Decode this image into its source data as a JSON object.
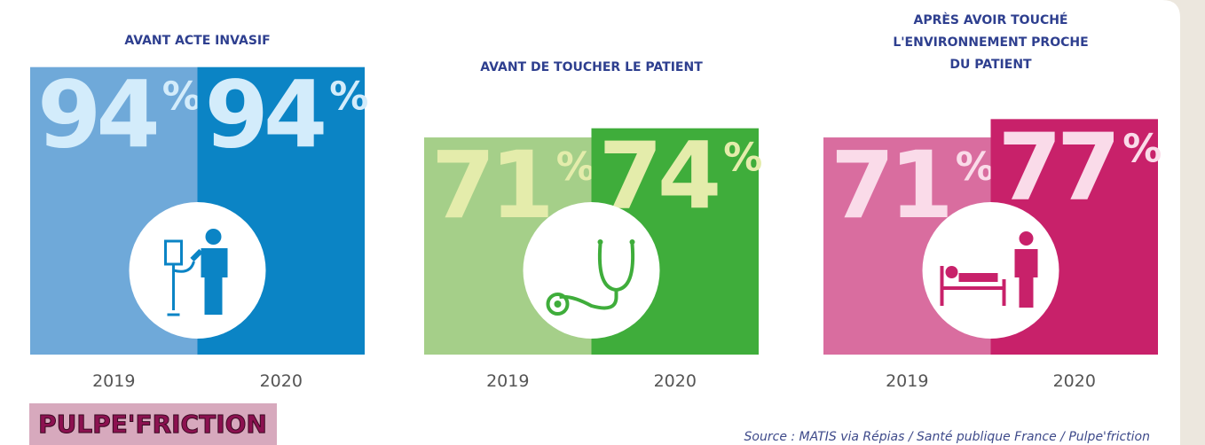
{
  "chart_data": [
    {
      "type": "bar",
      "title": [
        "AVANT ACTE INVASIF"
      ],
      "categories": [
        "2019",
        "2020"
      ],
      "values": [
        94,
        94
      ],
      "value_labels": [
        "94%",
        "94%"
      ],
      "colors": [
        "#6fa9d9",
        "#0b84c5"
      ],
      "label_color": "#d3ecfb",
      "ylim": [
        0,
        100
      ]
    },
    {
      "type": "bar",
      "title": [
        "AVANT DE TOUCHER LE PATIENT"
      ],
      "categories": [
        "2019",
        "2020"
      ],
      "values": [
        71,
        74
      ],
      "value_labels": [
        "71%",
        "74%"
      ],
      "colors": [
        "#a5cf89",
        "#3fad3b"
      ],
      "label_color": "#e4ecab",
      "ylim": [
        0,
        100
      ]
    },
    {
      "type": "bar",
      "title": [
        "APRÈS AVOIR TOUCHÉ",
        "L'ENVIRONNEMENT PROCHE",
        "DU PATIENT"
      ],
      "categories": [
        "2019",
        "2020"
      ],
      "values": [
        71,
        77
      ],
      "value_labels": [
        "71%",
        "77%"
      ],
      "colors": [
        "#d96d9f",
        "#c8216a"
      ],
      "label_color": "#fadbe9",
      "ylim": [
        0,
        100
      ]
    }
  ],
  "logo": "PULPE'FRICTION",
  "source": "Source : MATIS via Répias / Santé publique France / Pulpe'friction"
}
